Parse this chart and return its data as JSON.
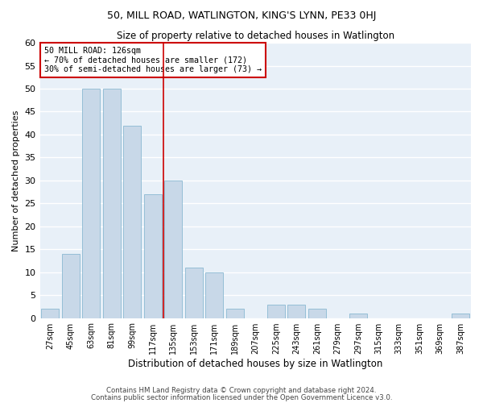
{
  "title1": "50, MILL ROAD, WATLINGTON, KING'S LYNN, PE33 0HJ",
  "title2": "Size of property relative to detached houses in Watlington",
  "xlabel": "Distribution of detached houses by size in Watlington",
  "ylabel": "Number of detached properties",
  "categories": [
    "27sqm",
    "45sqm",
    "63sqm",
    "81sqm",
    "99sqm",
    "117sqm",
    "135sqm",
    "153sqm",
    "171sqm",
    "189sqm",
    "207sqm",
    "225sqm",
    "243sqm",
    "261sqm",
    "279sqm",
    "297sqm",
    "315sqm",
    "333sqm",
    "351sqm",
    "369sqm",
    "387sqm"
  ],
  "values": [
    2,
    14,
    50,
    50,
    42,
    27,
    30,
    11,
    10,
    2,
    0,
    3,
    3,
    2,
    0,
    1,
    0,
    0,
    0,
    0,
    1
  ],
  "bar_color": "#c8d8e8",
  "bar_edge_color": "#7ab0cc",
  "bg_color": "#e8f0f8",
  "grid_color": "#ffffff",
  "vline_x": 5.5,
  "vline_color": "#cc0000",
  "annotation_text": "50 MILL ROAD: 126sqm\n← 70% of detached houses are smaller (172)\n30% of semi-detached houses are larger (73) →",
  "annotation_box_color": "#cc0000",
  "ylim": [
    0,
    60
  ],
  "yticks": [
    0,
    5,
    10,
    15,
    20,
    25,
    30,
    35,
    40,
    45,
    50,
    55,
    60
  ],
  "footer1": "Contains HM Land Registry data © Crown copyright and database right 2024.",
  "footer2": "Contains public sector information licensed under the Open Government Licence v3.0."
}
